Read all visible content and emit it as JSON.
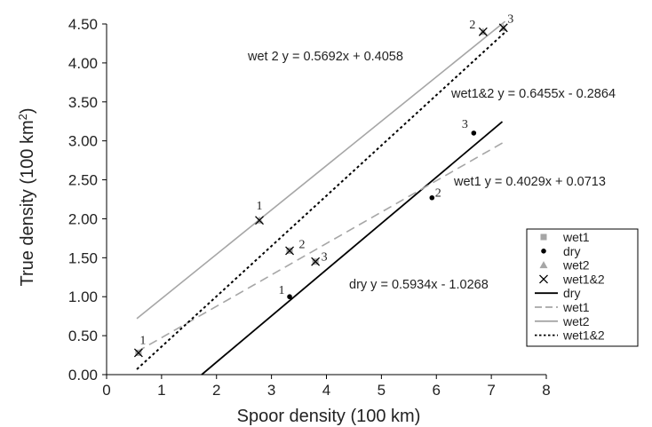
{
  "chart_data": {
    "type": "scatter",
    "xlabel": "Spoor density (100 km)",
    "ylabel_main": "True density (100 km",
    "ylabel_sup": "2",
    "ylabel_tail": ")",
    "xlim": [
      0,
      8
    ],
    "ylim": [
      0,
      4.5
    ],
    "x_ticks": [
      "0",
      "1",
      "2",
      "3",
      "4",
      "5",
      "6",
      "7",
      "8"
    ],
    "y_ticks": [
      "0.00",
      "0.50",
      "1.00",
      "1.50",
      "2.00",
      "2.50",
      "3.00",
      "3.50",
      "4.00",
      "4.50"
    ],
    "grid": false,
    "legend_position": "right",
    "points": [
      {
        "series": "wet1",
        "values": [
          {
            "x": 0.58,
            "y": 0.28,
            "label": "1"
          },
          {
            "x": 3.33,
            "y": 1.59,
            "label": "2"
          },
          {
            "x": 3.8,
            "y": 1.45,
            "label": "3"
          }
        ]
      },
      {
        "series": "dry",
        "values": [
          {
            "x": 3.33,
            "y": 1.0,
            "label": "1"
          },
          {
            "x": 5.92,
            "y": 2.27,
            "label": "2"
          },
          {
            "x": 6.68,
            "y": 3.1,
            "label": "3"
          }
        ]
      },
      {
        "series": "wet2",
        "values": [
          {
            "x": 2.78,
            "y": 1.98,
            "label": "1"
          },
          {
            "x": 6.85,
            "y": 4.4,
            "label": "2"
          },
          {
            "x": 7.22,
            "y": 4.45,
            "label": "3"
          }
        ]
      },
      {
        "series": "wet1&2",
        "values": [
          {
            "x": 0.58,
            "y": 0.28
          },
          {
            "x": 2.78,
            "y": 1.98
          },
          {
            "x": 3.33,
            "y": 1.59
          },
          {
            "x": 3.8,
            "y": 1.45
          },
          {
            "x": 6.85,
            "y": 4.4
          },
          {
            "x": 7.22,
            "y": 4.45
          }
        ]
      }
    ],
    "trendlines": [
      {
        "name": "dry",
        "slope": 0.5934,
        "intercept": -1.0268,
        "x_range": [
          1.73,
          7.2
        ],
        "equation": "dry  y = 0.5934x - 1.0268",
        "color": "#000000",
        "dash": "solid"
      },
      {
        "name": "wet1",
        "slope": 0.4029,
        "intercept": 0.0713,
        "x_range": [
          0.55,
          7.25
        ],
        "equation": "wet1  y = 0.4029x + 0.0713",
        "color": "#a6a6a6",
        "dash": "dashed"
      },
      {
        "name": "wet2",
        "slope": 0.5692,
        "intercept": 0.4058,
        "x_range": [
          0.55,
          7.25
        ],
        "equation": "wet 2  y = 0.5692x + 0.4058",
        "color": "#a6a6a6",
        "dash": "solid"
      },
      {
        "name": "wet1&2",
        "slope": 0.6455,
        "intercept": -0.2864,
        "x_range": [
          0.55,
          7.25
        ],
        "equation": "wet1&2  y = 0.6455x - 0.2864",
        "color": "#000000",
        "dash": "dotted"
      }
    ],
    "legend": [
      {
        "label": "wet1",
        "kind": "square",
        "color": "#a6a6a6"
      },
      {
        "label": "dry",
        "kind": "dot",
        "color": "#000000"
      },
      {
        "label": "wet2",
        "kind": "triangle",
        "color": "#a6a6a6"
      },
      {
        "label": "wet1&2",
        "kind": "cross",
        "color": "#000000"
      },
      {
        "label": "dry",
        "kind": "line-solid",
        "color": "#000000"
      },
      {
        "label": "wet1",
        "kind": "line-dashed",
        "color": "#a6a6a6"
      },
      {
        "label": "wet2",
        "kind": "line-solid",
        "color": "#a6a6a6"
      },
      {
        "label": "wet1&2",
        "kind": "line-dotted",
        "color": "#000000"
      }
    ]
  }
}
